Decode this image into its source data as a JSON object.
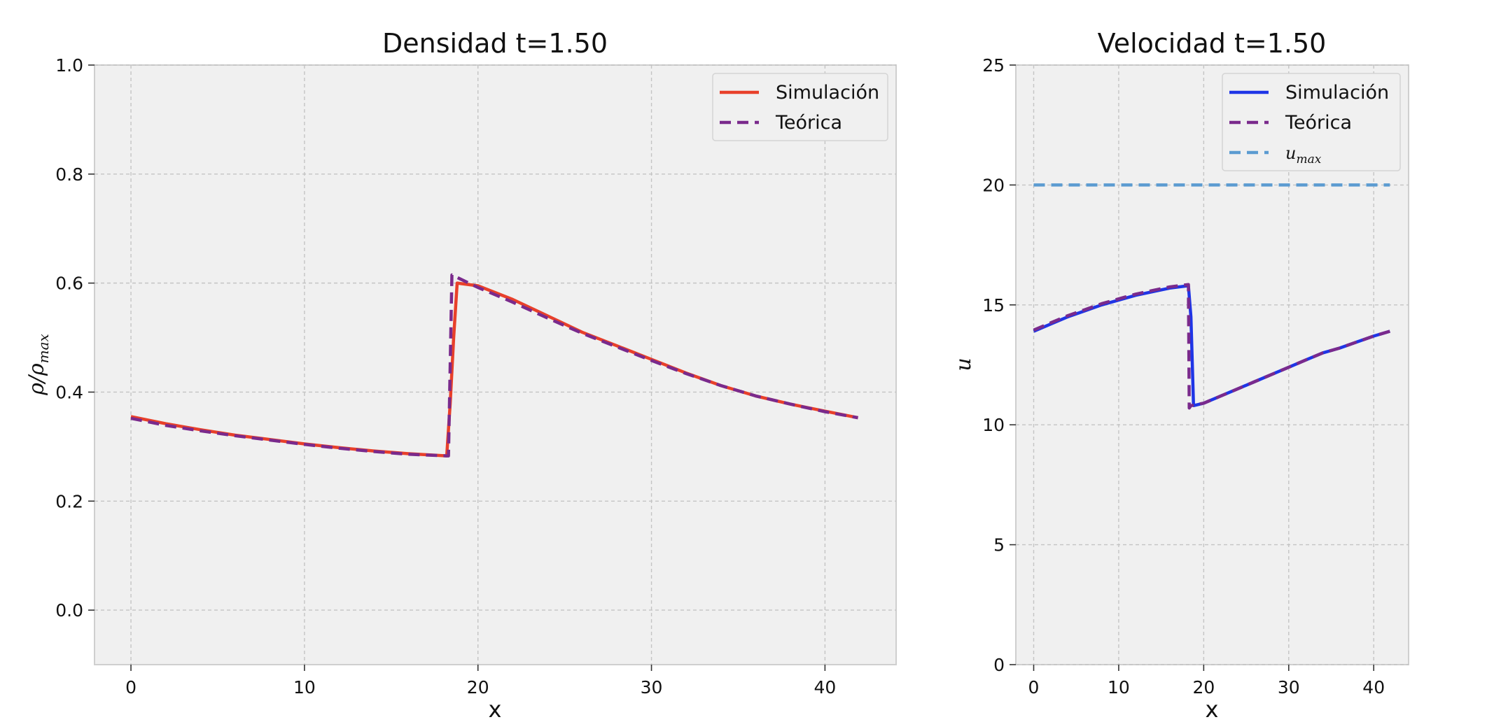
{
  "chart_data": [
    {
      "type": "line",
      "title": "Densidad t=1.50",
      "xlabel": "x",
      "ylabel": "ρ/ρmax",
      "xlim": [
        -2.1,
        44.1
      ],
      "ylim": [
        -0.1,
        1.0
      ],
      "xticks": [
        0,
        10,
        20,
        30,
        40
      ],
      "xtick_labels": [
        "0",
        "10",
        "20",
        "30",
        "40"
      ],
      "yticks": [
        0.0,
        0.2,
        0.4,
        0.6,
        0.8,
        1.0
      ],
      "ytick_labels": [
        "0.0",
        "0.2",
        "0.4",
        "0.6",
        "0.8",
        "1.0"
      ],
      "grid": true,
      "legend": "top-right",
      "series": [
        {
          "name": "Simulación",
          "color": "#e8402a",
          "style": "solid",
          "x": [
            0,
            2,
            4,
            6,
            8,
            10,
            12,
            14,
            16,
            18.2,
            18.4,
            18.6,
            18.8,
            20,
            22,
            24,
            26,
            28,
            30,
            32,
            34,
            36,
            38,
            40,
            41.9
          ],
          "y": [
            0.355,
            0.342,
            0.331,
            0.321,
            0.313,
            0.305,
            0.298,
            0.292,
            0.287,
            0.283,
            0.38,
            0.5,
            0.6,
            0.595,
            0.57,
            0.54,
            0.51,
            0.485,
            0.46,
            0.435,
            0.412,
            0.393,
            0.378,
            0.365,
            0.353
          ]
        },
        {
          "name": "Teórica",
          "color": "#7a2a8c",
          "style": "dashed",
          "x": [
            0,
            2,
            4,
            6,
            8,
            10,
            12,
            14,
            16,
            18.2,
            18.3,
            18.5,
            20,
            22,
            24,
            26,
            28,
            30,
            32,
            34,
            36,
            38,
            40,
            41.9
          ],
          "y": [
            0.352,
            0.339,
            0.329,
            0.32,
            0.312,
            0.304,
            0.297,
            0.291,
            0.286,
            0.283,
            0.283,
            0.615,
            0.592,
            0.565,
            0.536,
            0.508,
            0.483,
            0.458,
            0.434,
            0.412,
            0.393,
            0.378,
            0.364,
            0.353
          ]
        }
      ]
    },
    {
      "type": "line",
      "title": "Velocidad t=1.50",
      "xlabel": "x",
      "ylabel": "u",
      "xlim": [
        -2.1,
        44.1
      ],
      "ylim": [
        0,
        25
      ],
      "xticks": [
        0,
        10,
        20,
        30,
        40
      ],
      "xtick_labels": [
        "0",
        "10",
        "20",
        "30",
        "40"
      ],
      "yticks": [
        0,
        5,
        10,
        15,
        20,
        25
      ],
      "ytick_labels": [
        "0",
        "5",
        "10",
        "15",
        "20",
        "25"
      ],
      "grid": true,
      "legend": "top-right",
      "series": [
        {
          "name": "Simulación",
          "color": "#1f35e6",
          "style": "solid",
          "x": [
            0,
            2,
            4,
            6,
            8,
            10,
            12,
            14,
            16,
            18.2,
            18.5,
            18.8,
            20,
            22,
            24,
            26,
            28,
            30,
            32,
            34,
            36,
            38,
            40,
            41.9
          ],
          "y": [
            13.9,
            14.2,
            14.5,
            14.75,
            15.0,
            15.2,
            15.4,
            15.55,
            15.7,
            15.8,
            14.5,
            10.8,
            10.9,
            11.2,
            11.5,
            11.8,
            12.1,
            12.4,
            12.7,
            13.0,
            13.2,
            13.45,
            13.7,
            13.9
          ]
        },
        {
          "name": "Teórica",
          "color": "#7a2a8c",
          "style": "dashed",
          "x": [
            0,
            2,
            4,
            6,
            8,
            10,
            12,
            14,
            16,
            18.2,
            18.3,
            18.5,
            20,
            22,
            24,
            26,
            28,
            30,
            32,
            34,
            36,
            38,
            40,
            41.9
          ],
          "y": [
            13.95,
            14.25,
            14.55,
            14.8,
            15.05,
            15.25,
            15.45,
            15.6,
            15.75,
            15.85,
            10.7,
            10.8,
            10.9,
            11.2,
            11.5,
            11.8,
            12.1,
            12.4,
            12.7,
            13.0,
            13.2,
            13.45,
            13.7,
            13.9
          ]
        },
        {
          "name": "umax",
          "color": "#5b9bd1",
          "style": "dashed",
          "x": [
            0,
            41.9
          ],
          "y": [
            20,
            20
          ]
        }
      ]
    }
  ]
}
